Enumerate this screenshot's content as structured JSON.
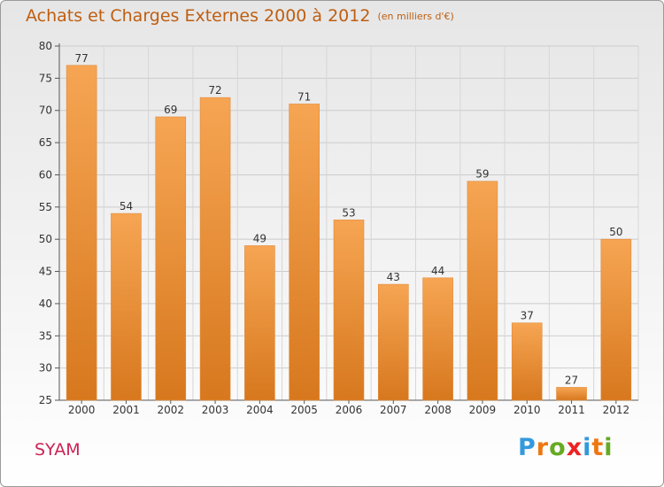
{
  "title": "Achats et Charges Externes 2000 à 2012",
  "subtitle": "(en milliers d'€)",
  "commune": "SYAM",
  "logo": {
    "letters": [
      "P",
      "r",
      "o",
      "x",
      "i",
      "t",
      "i"
    ],
    "colors": [
      "#3399dd",
      "#ee7711",
      "#66aa22",
      "#ee2222",
      "#3399dd",
      "#ee7711",
      "#66aa22"
    ]
  },
  "colors": {
    "bar_top": "#f6a553",
    "bar_bottom": "#d7781e",
    "title": "#bf5e10",
    "commune": "#cc2255"
  },
  "chart_data": {
    "type": "bar",
    "categories": [
      "2000",
      "2001",
      "2002",
      "2003",
      "2004",
      "2005",
      "2006",
      "2007",
      "2008",
      "2009",
      "2010",
      "2011",
      "2012"
    ],
    "values": [
      77,
      54,
      69,
      72,
      49,
      71,
      53,
      43,
      44,
      59,
      37,
      27,
      50
    ],
    "ylim": [
      25,
      80
    ],
    "yticks": [
      25,
      30,
      35,
      40,
      45,
      50,
      55,
      60,
      65,
      70,
      75,
      80
    ],
    "grid": true
  }
}
